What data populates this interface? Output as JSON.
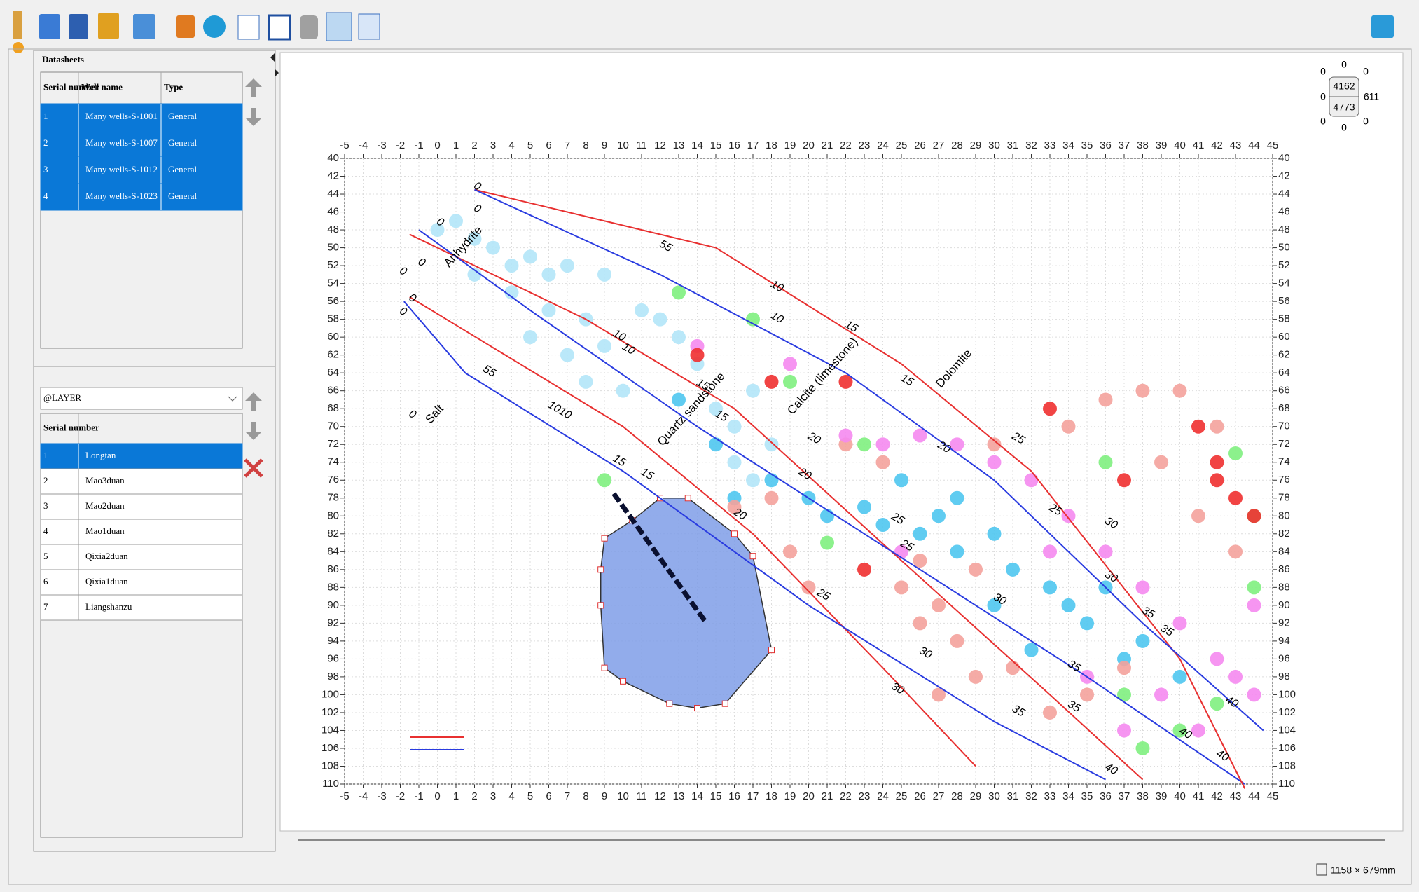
{
  "datasheets": {
    "title": "Datasheets",
    "columns": [
      "Serial number",
      "Well name",
      "Type"
    ],
    "rows": [
      [
        "1",
        "Many wells-S-1001",
        "General"
      ],
      [
        "2",
        "Many wells-S-1007",
        "General"
      ],
      [
        "3",
        "Many wells-S-1012",
        "General"
      ],
      [
        "4",
        "Many wells-S-1023",
        "General"
      ]
    ],
    "selected": [
      0,
      1,
      2,
      3
    ]
  },
  "layers": {
    "dropdown": "@LAYER",
    "columns": [
      "Serial number",
      ""
    ],
    "rows": [
      [
        "1",
        "Longtan"
      ],
      [
        "2",
        "Mao3duan"
      ],
      [
        "3",
        "Mao2duan"
      ],
      [
        "4",
        "Mao1duan"
      ],
      [
        "5",
        "Qixia2duan"
      ],
      [
        "6",
        "Qixia1duan"
      ],
      [
        "7",
        "Liangshanzu"
      ]
    ],
    "selected": [
      0
    ]
  },
  "navigator": {
    "values": [
      "0",
      "0",
      "0",
      "4162",
      "0",
      "611",
      "4773",
      "0",
      "0",
      "0"
    ]
  },
  "status": {
    "size": "1158 × 679mm"
  },
  "chart_data": {
    "type": "scatter",
    "xlim": [
      -5,
      45
    ],
    "xticks": [
      -5,
      -4,
      -3,
      -2,
      -1,
      0,
      1,
      2,
      3,
      4,
      5,
      6,
      7,
      8,
      9,
      10,
      11,
      12,
      13,
      14,
      15,
      16,
      17,
      18,
      19,
      20,
      21,
      22,
      23,
      24,
      25,
      26,
      27,
      28,
      29,
      30,
      31,
      32,
      33,
      34,
      35,
      36,
      37,
      38,
      39,
      40,
      41,
      42,
      43,
      44,
      45
    ],
    "ylim": [
      40,
      110
    ],
    "y_inverted": true,
    "yticks": [
      40,
      42,
      44,
      46,
      48,
      50,
      52,
      54,
      56,
      58,
      60,
      62,
      64,
      66,
      68,
      70,
      72,
      74,
      76,
      78,
      80,
      82,
      84,
      86,
      88,
      90,
      92,
      94,
      96,
      98,
      100,
      102,
      104,
      106,
      108,
      110
    ],
    "grid": true,
    "series": [
      {
        "color": "#b3e5f8",
        "x": [
          0,
          1,
          2,
          3,
          4,
          5,
          6,
          7,
          9,
          2,
          4,
          6,
          8,
          5,
          7,
          9,
          10,
          8,
          11,
          12,
          13,
          14,
          15,
          16,
          17,
          18,
          16,
          17
        ],
        "y": [
          48,
          47,
          49,
          50,
          52,
          51,
          53,
          52,
          53,
          53,
          55,
          57,
          58,
          60,
          62,
          61,
          66,
          65,
          57,
          58,
          60,
          63,
          68,
          70,
          66,
          72,
          74,
          76
        ]
      },
      {
        "color": "#4fc6f0",
        "x": [
          13,
          15,
          16,
          18,
          20,
          21,
          23,
          25,
          27,
          28,
          30,
          31,
          33,
          34,
          35,
          30,
          28,
          37,
          38,
          32,
          26,
          24,
          36,
          40
        ],
        "y": [
          67,
          72,
          78,
          76,
          78,
          80,
          79,
          76,
          80,
          84,
          82,
          86,
          88,
          90,
          92,
          90,
          78,
          96,
          94,
          95,
          82,
          81,
          88,
          98
        ]
      },
      {
        "color": "#f4a29c",
        "x": [
          22,
          24,
          26,
          25,
          27,
          28,
          29,
          27,
          31,
          33,
          35,
          37,
          30,
          34,
          36,
          38,
          40,
          42,
          26,
          29,
          39,
          41,
          43,
          18,
          19,
          20,
          16
        ],
        "y": [
          72,
          74,
          85,
          88,
          90,
          94,
          98,
          100,
          97,
          102,
          100,
          97,
          72,
          70,
          67,
          66,
          66,
          70,
          92,
          86,
          74,
          80,
          84,
          78,
          84,
          88,
          79
        ]
      },
      {
        "color": "#f58af0",
        "x": [
          24,
          26,
          28,
          30,
          32,
          34,
          36,
          38,
          40,
          42,
          44,
          39,
          41,
          43,
          37,
          35,
          22,
          14,
          19,
          25,
          33,
          44
        ],
        "y": [
          72,
          71,
          72,
          74,
          76,
          80,
          84,
          88,
          92,
          96,
          100,
          100,
          104,
          98,
          104,
          98,
          71,
          61,
          63,
          84,
          84,
          90
        ]
      },
      {
        "color": "#7ff07f",
        "x": [
          13,
          17,
          19,
          23,
          37,
          40,
          42,
          44,
          43,
          21,
          9,
          36,
          44,
          38
        ],
        "y": [
          55,
          58,
          65,
          72,
          100,
          104,
          101,
          80,
          73,
          83,
          76,
          74,
          88,
          106
        ]
      },
      {
        "color": "#f03030",
        "x": [
          14,
          18,
          22,
          33,
          41,
          42,
          43,
          44,
          42,
          23,
          37
        ],
        "y": [
          62,
          65,
          65,
          68,
          70,
          74,
          78,
          80,
          76,
          86,
          76
        ]
      }
    ],
    "curves": [
      {
        "color": "#e83030",
        "x": [
          -1.5,
          10,
          17,
          24,
          29
        ],
        "y": [
          55.5,
          70,
          82,
          97,
          108
        ]
      },
      {
        "color": "#2a3ce0",
        "x": [
          -1.8,
          1.5,
          10,
          20,
          30,
          36
        ],
        "y": [
          56,
          64,
          75,
          90,
          103,
          109.5
        ]
      },
      {
        "color": "#e83030",
        "x": [
          -1.5,
          8,
          16,
          25,
          33,
          38
        ],
        "y": [
          48.5,
          58,
          68,
          85,
          100,
          109.5
        ]
      },
      {
        "color": "#2a3ce0",
        "x": [
          -1,
          5,
          14,
          23,
          35,
          43.5
        ],
        "y": [
          48,
          57,
          70,
          82,
          98,
          110
        ]
      },
      {
        "color": "#e83030",
        "x": [
          2,
          15,
          25,
          32,
          40,
          43.5
        ],
        "y": [
          43.5,
          50,
          63,
          75,
          96,
          110.5
        ]
      },
      {
        "color": "#2a3ce0",
        "x": [
          2,
          12,
          22,
          30,
          38,
          44.5
        ],
        "y": [
          43.5,
          53,
          64,
          76,
          92,
          104
        ]
      }
    ],
    "polygon": {
      "color": "#7f9ee8",
      "x": [
        9,
        10.5,
        12,
        13.5,
        16,
        17,
        18,
        15.5,
        14,
        12.5,
        10,
        9,
        8.8,
        8.8
      ],
      "y": [
        82.5,
        80.5,
        78,
        78,
        82,
        84.5,
        95,
        101,
        101.5,
        101,
        98.5,
        97,
        90,
        86
      ]
    },
    "dashed_line": {
      "x": [
        9.5,
        14.5
      ],
      "y": [
        77.5,
        92
      ]
    },
    "annotations": [
      {
        "text": "Anhydrite",
        "x": 0.5,
        "y": 52
      },
      {
        "text": "Salt",
        "x": -0.5,
        "y": 69.5
      },
      {
        "text": "Quartz sandstone",
        "x": 12,
        "y": 72
      },
      {
        "text": "Calcite (limestone)",
        "x": 19,
        "y": 68.5
      },
      {
        "text": "Dolomite",
        "x": 27,
        "y": 65.5
      }
    ],
    "line_labels": [
      {
        "text": "0",
        "x": 2,
        "y": 43
      },
      {
        "text": "0",
        "x": 2,
        "y": 45.5
      },
      {
        "text": "0",
        "x": 0,
        "y": 47
      },
      {
        "text": "0",
        "x": -1,
        "y": 51.5
      },
      {
        "text": "0",
        "x": -2,
        "y": 52.5
      },
      {
        "text": "0",
        "x": -1.5,
        "y": 55.5
      },
      {
        "text": "0",
        "x": -2,
        "y": 57
      },
      {
        "text": "0",
        "x": -1.5,
        "y": 68.5
      },
      {
        "text": "55",
        "x": 12,
        "y": 49.5
      },
      {
        "text": "55",
        "x": 2.5,
        "y": 63.5
      },
      {
        "text": "10",
        "x": 18,
        "y": 54
      },
      {
        "text": "10",
        "x": 18,
        "y": 57.5
      },
      {
        "text": "15",
        "x": 22,
        "y": 58.5
      },
      {
        "text": "10",
        "x": 9.5,
        "y": 59.5
      },
      {
        "text": "10",
        "x": 10,
        "y": 61
      },
      {
        "text": "1010",
        "x": 6,
        "y": 67.5
      },
      {
        "text": "15",
        "x": 14,
        "y": 65
      },
      {
        "text": "15",
        "x": 15,
        "y": 68.5
      },
      {
        "text": "15",
        "x": 25,
        "y": 64.5
      },
      {
        "text": "20",
        "x": 20,
        "y": 71
      },
      {
        "text": "20",
        "x": 19.5,
        "y": 75
      },
      {
        "text": "15",
        "x": 9.5,
        "y": 73.5
      },
      {
        "text": "15",
        "x": 11,
        "y": 75
      },
      {
        "text": "20",
        "x": 27,
        "y": 72
      },
      {
        "text": "25",
        "x": 31,
        "y": 71
      },
      {
        "text": "25",
        "x": 33,
        "y": 79
      },
      {
        "text": "30",
        "x": 36,
        "y": 80.5
      },
      {
        "text": "25",
        "x": 24.5,
        "y": 80
      },
      {
        "text": "25",
        "x": 25,
        "y": 83
      },
      {
        "text": "20",
        "x": 16,
        "y": 79.5
      },
      {
        "text": "25",
        "x": 20.5,
        "y": 88.5
      },
      {
        "text": "30",
        "x": 30,
        "y": 89
      },
      {
        "text": "30",
        "x": 36,
        "y": 86.5
      },
      {
        "text": "35",
        "x": 38,
        "y": 90.5
      },
      {
        "text": "35",
        "x": 39,
        "y": 92.5
      },
      {
        "text": "35",
        "x": 34,
        "y": 96.5
      },
      {
        "text": "35",
        "x": 34,
        "y": 101
      },
      {
        "text": "35",
        "x": 31,
        "y": 101.5
      },
      {
        "text": "30",
        "x": 26,
        "y": 95
      },
      {
        "text": "30",
        "x": 24.5,
        "y": 99
      },
      {
        "text": "40",
        "x": 42.5,
        "y": 100.5
      },
      {
        "text": "40",
        "x": 40,
        "y": 104
      },
      {
        "text": "40",
        "x": 36,
        "y": 108
      },
      {
        "text": "40",
        "x": 42,
        "y": 106.5
      }
    ]
  }
}
